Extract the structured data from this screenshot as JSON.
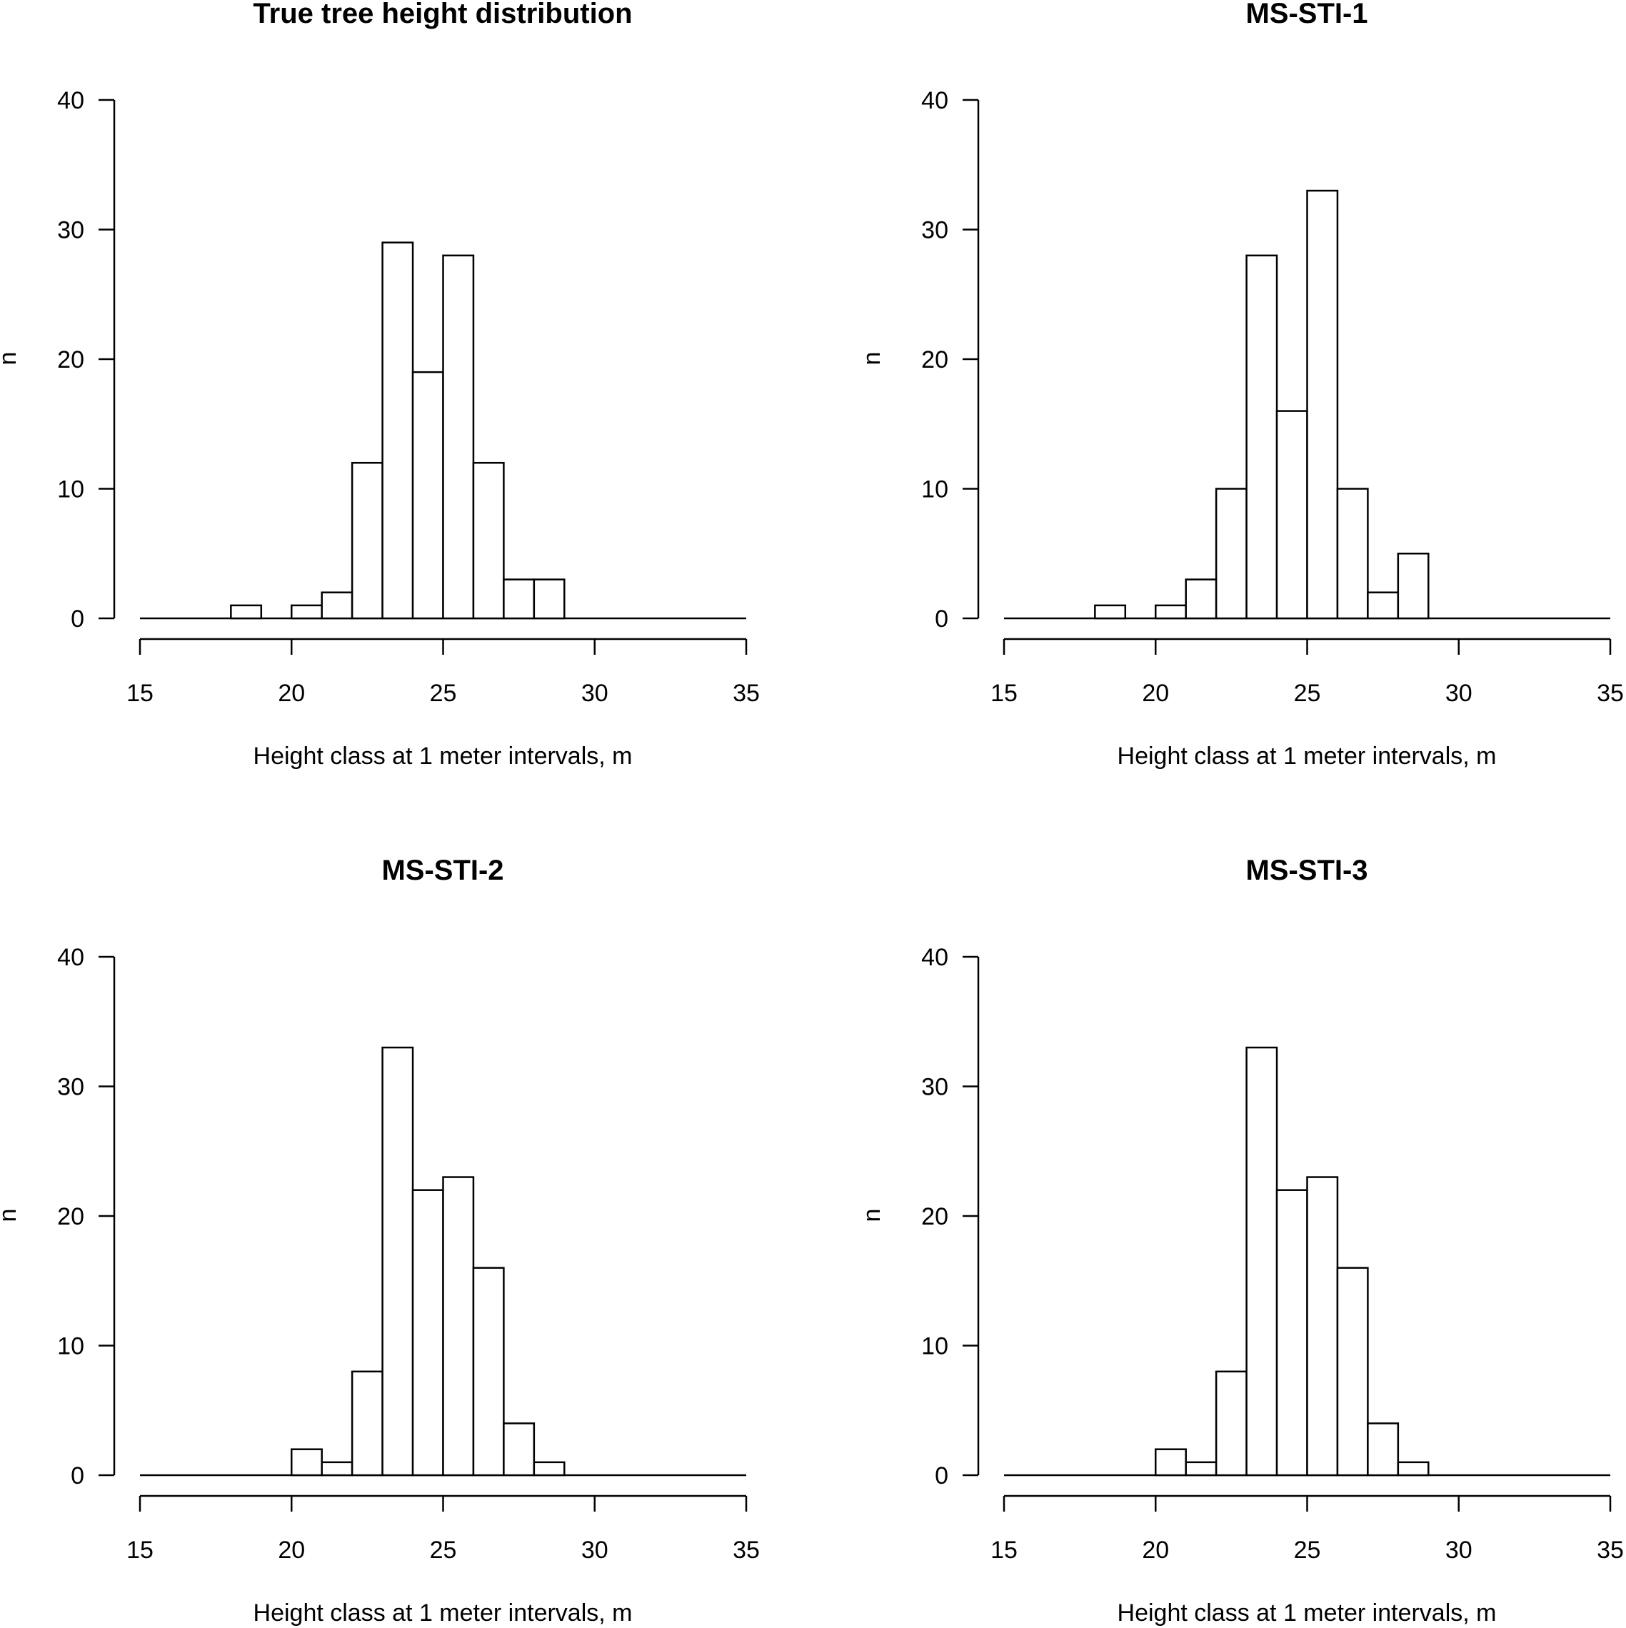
{
  "chart_data": [
    {
      "type": "bar",
      "title": "True tree height distribution",
      "xlabel": "Height class at 1 meter intervals, m",
      "ylabel": "n",
      "xlim": [
        15,
        35
      ],
      "ylim": [
        0,
        40
      ],
      "xticks": [
        "15",
        "20",
        "25",
        "30",
        "35"
      ],
      "yticks": [
        "0",
        "10",
        "20",
        "30",
        "40"
      ],
      "bin_width": 1,
      "bin_starts": [
        15,
        16,
        17,
        18,
        19,
        20,
        21,
        22,
        23,
        24,
        25,
        26,
        27,
        28,
        29,
        30,
        31,
        32,
        33,
        34
      ],
      "values": [
        0,
        0,
        0,
        1,
        0,
        1,
        2,
        12,
        29,
        19,
        28,
        12,
        3,
        3,
        0,
        0,
        0,
        0,
        0,
        0
      ]
    },
    {
      "type": "bar",
      "title": "MS-STI-1",
      "xlabel": "Height class at 1 meter intervals, m",
      "ylabel": "n",
      "xlim": [
        15,
        35
      ],
      "ylim": [
        0,
        40
      ],
      "xticks": [
        "15",
        "20",
        "25",
        "30",
        "35"
      ],
      "yticks": [
        "0",
        "10",
        "20",
        "30",
        "40"
      ],
      "bin_width": 1,
      "bin_starts": [
        15,
        16,
        17,
        18,
        19,
        20,
        21,
        22,
        23,
        24,
        25,
        26,
        27,
        28,
        29,
        30,
        31,
        32,
        33,
        34
      ],
      "values": [
        0,
        0,
        0,
        1,
        0,
        1,
        3,
        10,
        28,
        16,
        33,
        10,
        2,
        5,
        0,
        0,
        0,
        0,
        0,
        0
      ]
    },
    {
      "type": "bar",
      "title": "MS-STI-2",
      "xlabel": "Height class at 1 meter intervals, m",
      "ylabel": "n",
      "xlim": [
        15,
        35
      ],
      "ylim": [
        0,
        40
      ],
      "xticks": [
        "15",
        "20",
        "25",
        "30",
        "35"
      ],
      "yticks": [
        "0",
        "10",
        "20",
        "30",
        "40"
      ],
      "bin_width": 1,
      "bin_starts": [
        15,
        16,
        17,
        18,
        19,
        20,
        21,
        22,
        23,
        24,
        25,
        26,
        27,
        28,
        29,
        30,
        31,
        32,
        33,
        34
      ],
      "values": [
        0,
        0,
        0,
        0,
        0,
        2,
        1,
        8,
        33,
        22,
        23,
        16,
        4,
        1,
        0,
        0,
        0,
        0,
        0,
        0
      ]
    },
    {
      "type": "bar",
      "title": "MS-STI-3",
      "xlabel": "Height class at 1 meter intervals, m",
      "ylabel": "n",
      "xlim": [
        15,
        35
      ],
      "ylim": [
        0,
        40
      ],
      "xticks": [
        "15",
        "20",
        "25",
        "30",
        "35"
      ],
      "yticks": [
        "0",
        "10",
        "20",
        "30",
        "40"
      ],
      "bin_width": 1,
      "bin_starts": [
        15,
        16,
        17,
        18,
        19,
        20,
        21,
        22,
        23,
        24,
        25,
        26,
        27,
        28,
        29,
        30,
        31,
        32,
        33,
        34
      ],
      "values": [
        0,
        0,
        0,
        0,
        0,
        2,
        1,
        8,
        33,
        22,
        23,
        16,
        4,
        1,
        0,
        0,
        0,
        0,
        0,
        0
      ]
    }
  ]
}
